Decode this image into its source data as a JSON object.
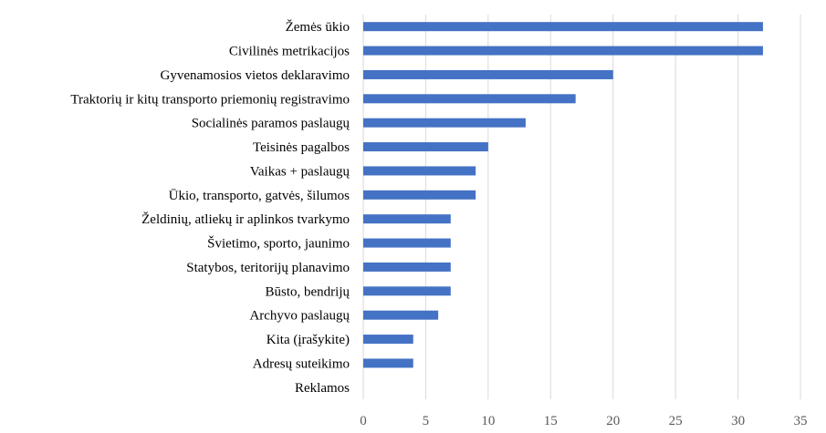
{
  "chart_data": {
    "type": "bar",
    "orientation": "horizontal",
    "categories": [
      "Žemės ūkio",
      "Civilinės metrikacijos",
      "Gyvenamosios vietos deklaravimo",
      "Traktorių ir kitų transporto priemonių registravimo",
      "Socialinės paramos paslaugų",
      "Teisinės pagalbos",
      "Vaikas + paslaugų",
      "Ūkio, transporto, gatvės, šilumos",
      "Želdinių, atliekų ir aplinkos tvarkymo",
      "Švietimo, sporto, jaunimo",
      "Statybos, teritorijų planavimo",
      "Būsto, bendrijų",
      "Archyvo paslaugų",
      "Kita (įrašykite)",
      "Adresų suteikimo",
      "Reklamos"
    ],
    "values": [
      32,
      32,
      20,
      17,
      13,
      10,
      9,
      9,
      7,
      7,
      7,
      7,
      6,
      4,
      4,
      0
    ],
    "title": "",
    "xlabel": "",
    "ylabel": "",
    "xlim": [
      0,
      35
    ],
    "xticks": [
      "0",
      "5",
      "10",
      "15",
      "20",
      "25",
      "30",
      "35"
    ],
    "grid": "vertical",
    "legend": "none",
    "bar_color": "#4472c4"
  }
}
